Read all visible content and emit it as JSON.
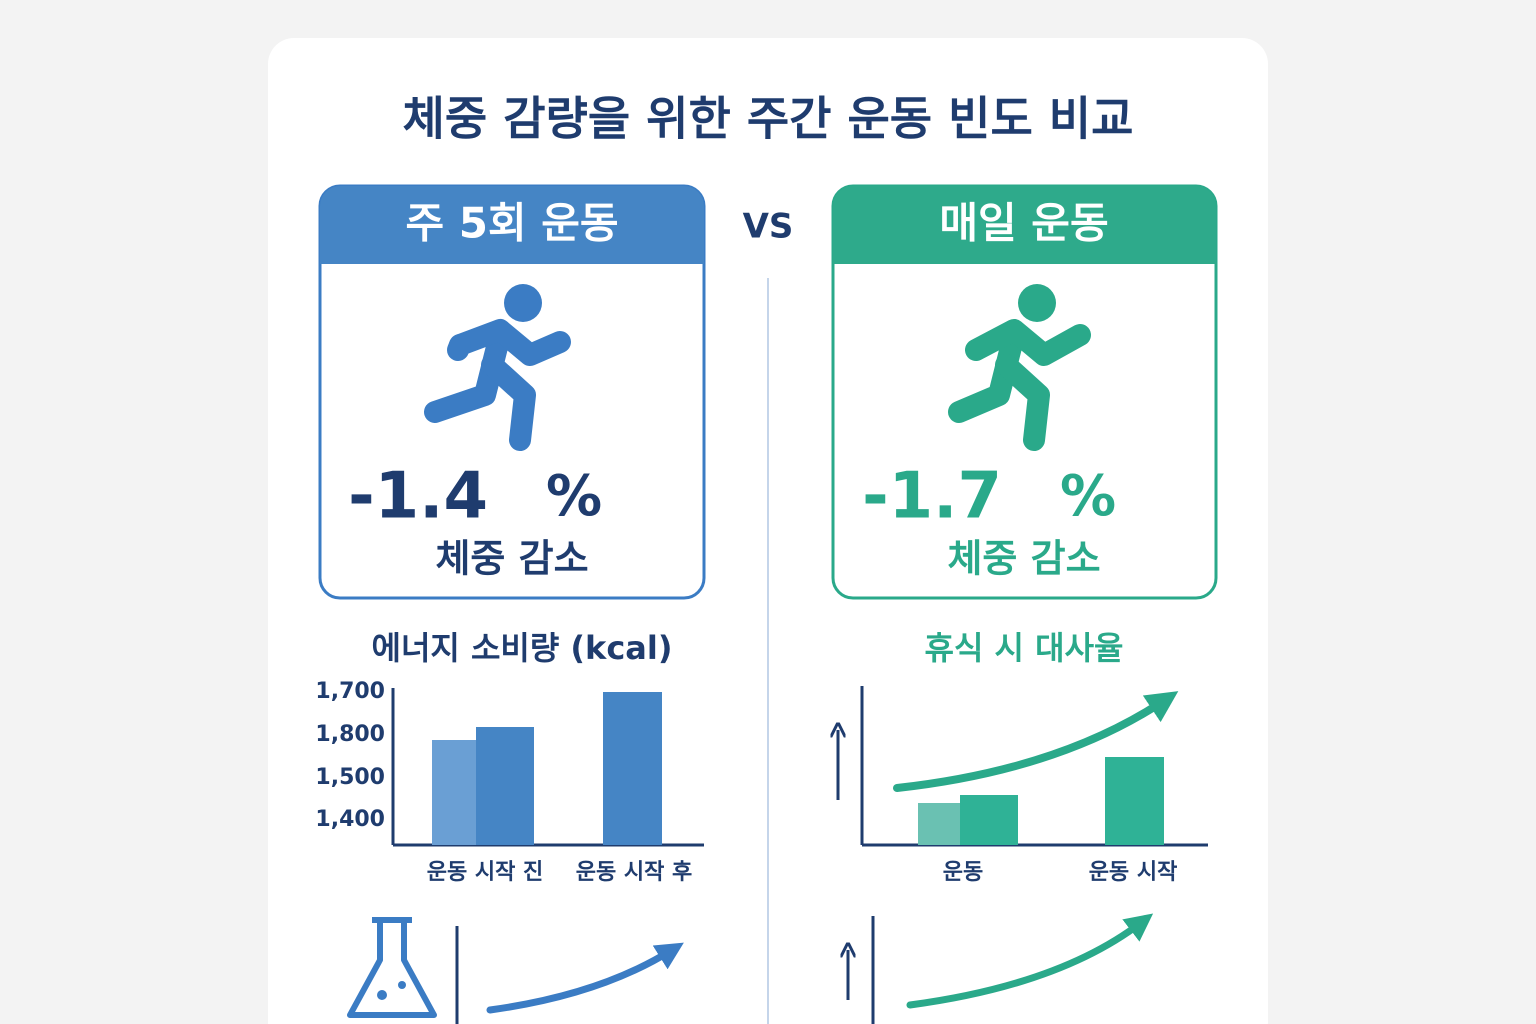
{
  "title": "체중 감량을 위한 주간 운동 빈도 비교",
  "vs": "VS",
  "left": {
    "header": "주 5회 운동",
    "value": "-1.4",
    "unit": "%",
    "caption": "체중 감소",
    "chart": {
      "title": "에너지 소비량 (kcal)",
      "yticks": [
        "1,700",
        "1,800",
        "1,500",
        "1,400"
      ],
      "categories": [
        "운동 시작 진",
        "운동 시작 후"
      ]
    }
  },
  "right": {
    "header": "매일 운동",
    "value": "-1.7",
    "unit": "%",
    "caption": "체중 감소",
    "chart": {
      "title": "휴식 시 대사율",
      "categories": [
        "운동",
        "운동 시작"
      ]
    }
  }
}
